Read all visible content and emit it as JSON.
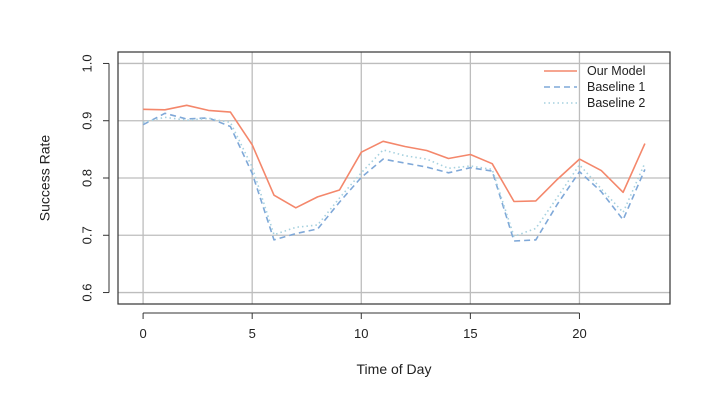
{
  "chart_data": {
    "type": "line",
    "title": "",
    "xlabel": "Time of Day",
    "ylabel": "Success Rate",
    "xlim": [
      -1.15,
      24.15
    ],
    "ylim": [
      0.58,
      1.02
    ],
    "xticks": [
      0,
      5,
      10,
      15,
      20
    ],
    "yticks": [
      0.6,
      0.7,
      0.8,
      0.9,
      1.0
    ],
    "xtick_labels": [
      "0",
      "5",
      "10",
      "15",
      "20"
    ],
    "ytick_labels": [
      "0.6",
      "0.7",
      "0.8",
      "0.9",
      "1.0"
    ],
    "grid": true,
    "legend_position": "top-right",
    "x": [
      0,
      1,
      2,
      3,
      4,
      5,
      6,
      7,
      8,
      9,
      10,
      11,
      12,
      13,
      14,
      15,
      16,
      17,
      18,
      19,
      20,
      21,
      22,
      23
    ],
    "series": [
      {
        "name": "Our Model",
        "color": "#f4876b",
        "style": "solid",
        "values": [
          0.92,
          0.919,
          0.927,
          0.918,
          0.915,
          0.858,
          0.77,
          0.748,
          0.767,
          0.779,
          0.845,
          0.864,
          0.855,
          0.848,
          0.834,
          0.841,
          0.825,
          0.759,
          0.76,
          0.798,
          0.833,
          0.813,
          0.775,
          0.86
        ]
      },
      {
        "name": "Baseline 1",
        "color": "#7fa8d8",
        "style": "dashed",
        "values": [
          0.893,
          0.913,
          0.903,
          0.905,
          0.89,
          0.808,
          0.692,
          0.703,
          0.711,
          0.758,
          0.801,
          0.833,
          0.826,
          0.819,
          0.809,
          0.818,
          0.812,
          0.69,
          0.692,
          0.755,
          0.811,
          0.776,
          0.727,
          0.815
        ]
      },
      {
        "name": "Baseline 2",
        "color": "#a6d1df",
        "style": "dotted",
        "values": [
          0.897,
          0.906,
          0.901,
          0.904,
          0.897,
          0.819,
          0.701,
          0.714,
          0.718,
          0.765,
          0.809,
          0.849,
          0.839,
          0.833,
          0.817,
          0.821,
          0.815,
          0.698,
          0.712,
          0.767,
          0.823,
          0.781,
          0.74,
          0.826
        ]
      }
    ]
  }
}
